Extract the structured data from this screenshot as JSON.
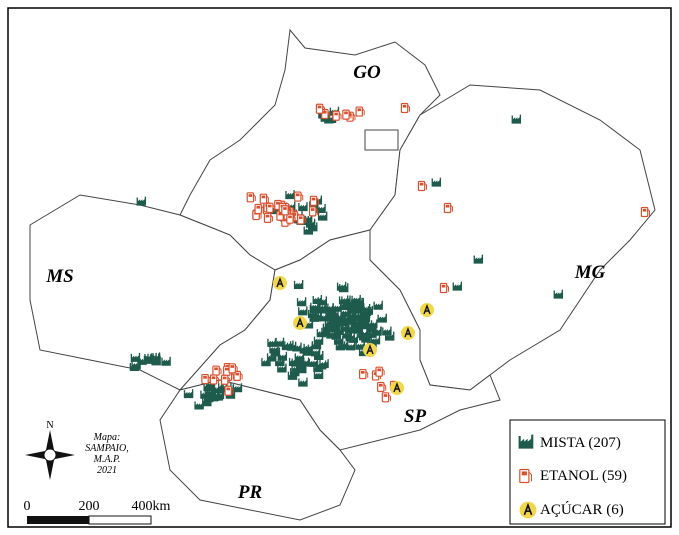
{
  "map": {
    "states": [
      "GO",
      "MS",
      "MG",
      "SP",
      "PR"
    ],
    "compass": "N",
    "credit": [
      "Mapa:",
      "SAMPAIO,",
      "M.A.P.",
      "2021"
    ],
    "scale": [
      "0",
      "200",
      "400km"
    ]
  },
  "legend": {
    "items": [
      "MISTA (207)",
      "ETANOL (59)",
      "AÇÚCAR (6)"
    ]
  }
}
